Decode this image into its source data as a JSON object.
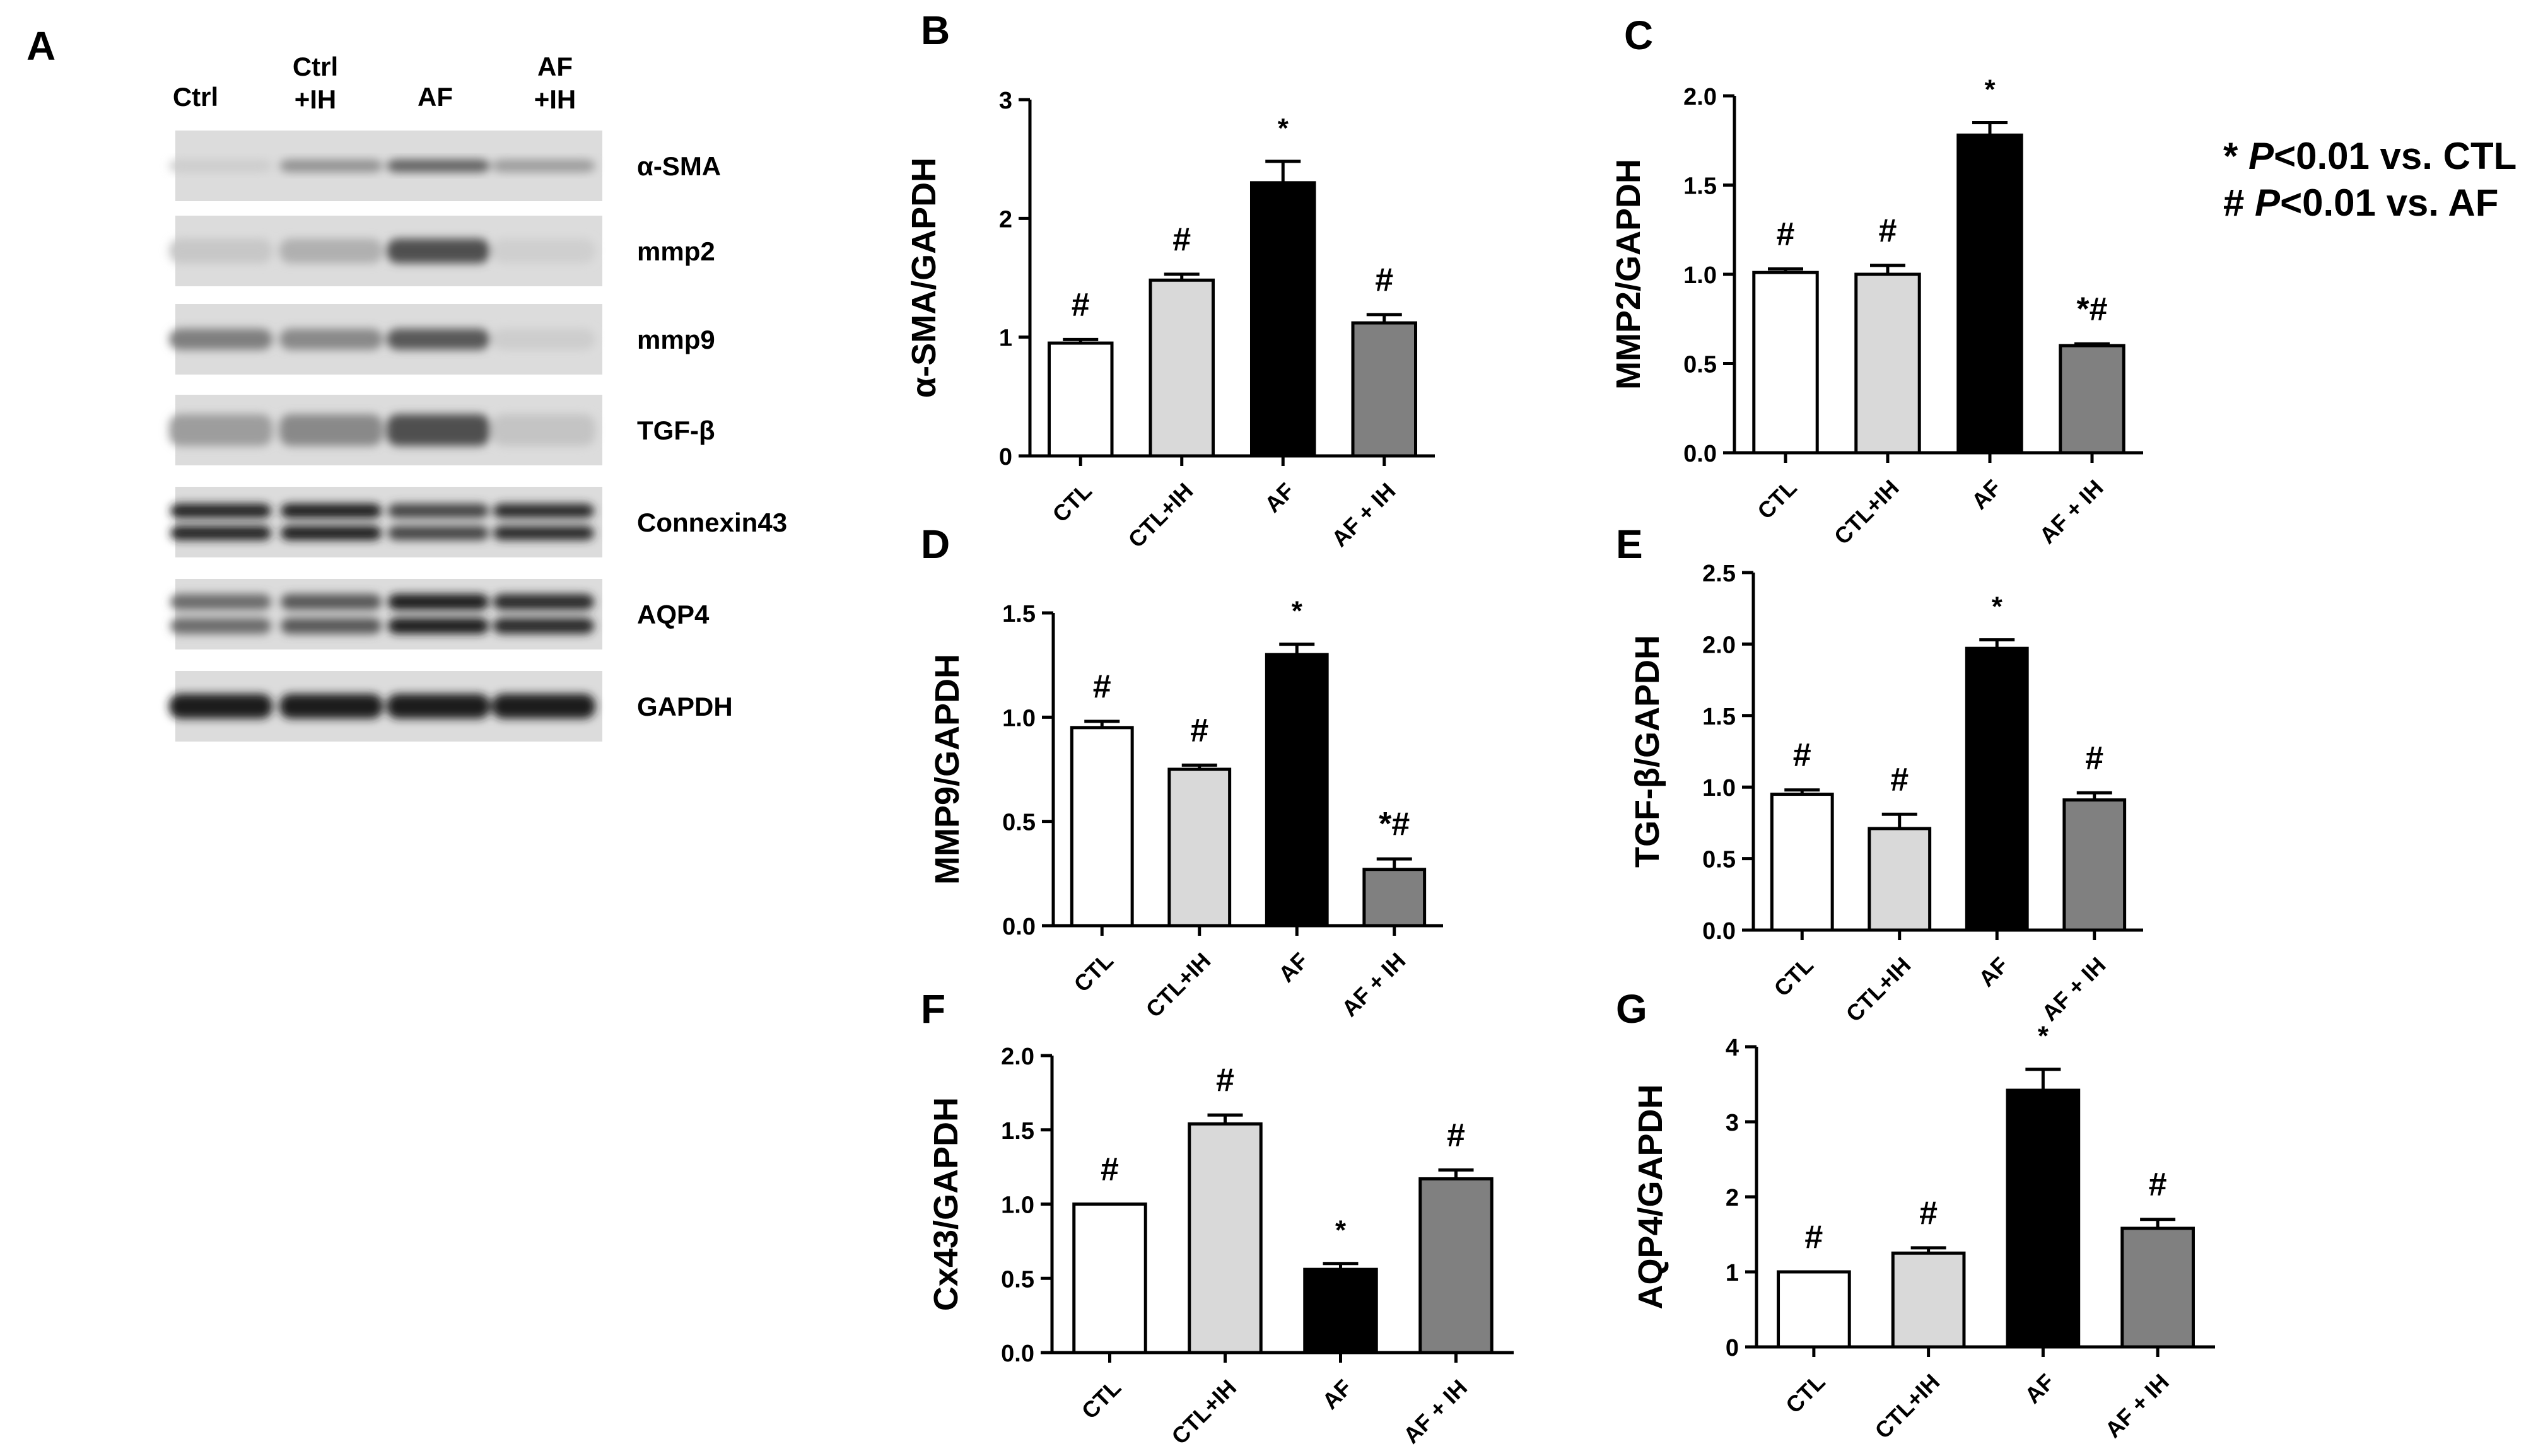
{
  "panel_a": {
    "letter": "A",
    "lanes": [
      {
        "line1": "Ctrl",
        "line2": ""
      },
      {
        "line1": "Ctrl",
        "line2": "+IH"
      },
      {
        "line1": "AF",
        "line2": ""
      },
      {
        "line1": "AF",
        "line2": "+IH"
      }
    ],
    "blots": [
      {
        "label": "α-SMA",
        "intensity": [
          0.05,
          0.35,
          0.6,
          0.3
        ],
        "thickness": 0.18,
        "doublet": false
      },
      {
        "label": "mmp2",
        "intensity": [
          0.08,
          0.2,
          0.7,
          0.04
        ],
        "thickness": 0.35,
        "doublet": false
      },
      {
        "label": "mmp9",
        "intensity": [
          0.45,
          0.4,
          0.65,
          0.05
        ],
        "thickness": 0.3,
        "doublet": false
      },
      {
        "label": "TGF-β",
        "intensity": [
          0.3,
          0.4,
          0.7,
          0.1
        ],
        "thickness": 0.45,
        "doublet": false
      },
      {
        "label": "Connexin43",
        "intensity": [
          0.92,
          0.95,
          0.75,
          0.88
        ],
        "thickness": 0.45,
        "doublet": true
      },
      {
        "label": "AQP4",
        "intensity": [
          0.55,
          0.65,
          0.95,
          0.88
        ],
        "thickness": 0.5,
        "doublet": true
      },
      {
        "label": "GAPDH",
        "intensity": [
          0.97,
          0.97,
          0.97,
          0.97
        ],
        "thickness": 0.35,
        "doublet": false
      }
    ]
  },
  "legend": {
    "line1_symbol": "*",
    "line1_p": "P",
    "line1_rest": "<0.01 vs. CTL",
    "line2_symbol": "#",
    "line2_p": "P",
    "line2_rest": "<0.01 vs. AF"
  },
  "colors": {
    "ctl": "#ffffff",
    "ctl_ih": "#d9d9d9",
    "af": "#000000",
    "af_ih": "#808080",
    "axis": "#000000"
  },
  "chart_data": [
    {
      "panel": "B",
      "type": "bar",
      "ylabel": "α-SMA/GAPDH",
      "categories": [
        "CTL",
        "CTL+IH",
        "AF",
        "AF + IH"
      ],
      "values": [
        0.95,
        1.48,
        2.3,
        1.12
      ],
      "errors": [
        0.03,
        0.05,
        0.18,
        0.07
      ],
      "annotations": [
        "#",
        "#",
        "*",
        "#"
      ],
      "ylim": [
        0,
        3
      ],
      "yticks": [
        "0",
        "1",
        "2",
        "3"
      ]
    },
    {
      "panel": "C",
      "type": "bar",
      "ylabel": "MMP2/GAPDH",
      "categories": [
        "CTL",
        "CTL+IH",
        "AF",
        "AF + IH"
      ],
      "values": [
        1.01,
        1.0,
        1.78,
        0.6
      ],
      "errors": [
        0.02,
        0.05,
        0.07,
        0.01
      ],
      "annotations": [
        "#",
        "#",
        "*",
        "*#"
      ],
      "ylim": [
        0,
        2.0
      ],
      "yticks": [
        "0.0",
        "0.5",
        "1.0",
        "1.5",
        "2.0"
      ]
    },
    {
      "panel": "D",
      "type": "bar",
      "ylabel": "MMP9/GAPDH",
      "categories": [
        "CTL",
        "CTL+IH",
        "AF",
        "AF + IH"
      ],
      "values": [
        0.95,
        0.75,
        1.3,
        0.27
      ],
      "errors": [
        0.03,
        0.02,
        0.05,
        0.05
      ],
      "annotations": [
        "#",
        "#",
        "*",
        "*#"
      ],
      "ylim": [
        0,
        1.5
      ],
      "yticks": [
        "0.0",
        "0.5",
        "1.0",
        "1.5"
      ]
    },
    {
      "panel": "E",
      "type": "bar",
      "ylabel": "TGF-β/GAPDH",
      "categories": [
        "CTL",
        "CTL+IH",
        "AF",
        "AF + IH"
      ],
      "values": [
        0.95,
        0.71,
        1.97,
        0.91
      ],
      "errors": [
        0.03,
        0.1,
        0.06,
        0.05
      ],
      "annotations": [
        "#",
        "#",
        "*",
        "#"
      ],
      "ylim": [
        0,
        2.5
      ],
      "yticks": [
        "0.0",
        "0.5",
        "1.0",
        "1.5",
        "2.0",
        "2.5"
      ]
    },
    {
      "panel": "F",
      "type": "bar",
      "ylabel": "Cx43/GAPDH",
      "categories": [
        "CTL",
        "CTL+IH",
        "AF",
        "AF + IH"
      ],
      "values": [
        1.0,
        1.54,
        0.56,
        1.17
      ],
      "errors": [
        0.0,
        0.06,
        0.04,
        0.06
      ],
      "annotations": [
        "#",
        "#",
        "*",
        "#"
      ],
      "ylim": [
        0,
        2.0
      ],
      "yticks": [
        "0.0",
        "0.5",
        "1.0",
        "1.5",
        "2.0"
      ]
    },
    {
      "panel": "G",
      "type": "bar",
      "ylabel": "AQP4/GAPDH",
      "categories": [
        "CTL",
        "CTL+IH",
        "AF",
        "AF + IH"
      ],
      "values": [
        1.0,
        1.25,
        3.42,
        1.58
      ],
      "errors": [
        0.0,
        0.07,
        0.28,
        0.12
      ],
      "annotations": [
        "#",
        "#",
        "*",
        "#"
      ],
      "ylim": [
        0,
        4
      ],
      "yticks": [
        "0",
        "1",
        "2",
        "3",
        "4"
      ]
    }
  ]
}
